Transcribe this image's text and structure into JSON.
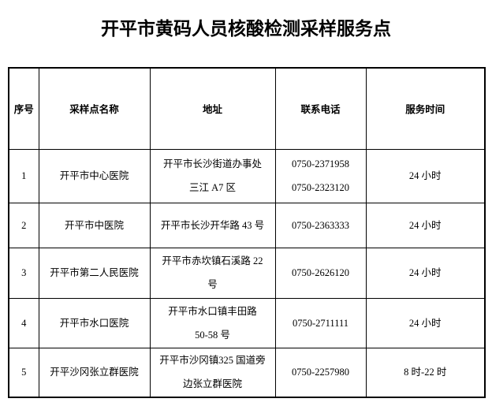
{
  "page": {
    "title": "开平市黄码人员核酸检测采样服务点"
  },
  "table": {
    "headers": [
      "序号",
      "采样点名称",
      "地址",
      "联系电话",
      "服务时间"
    ],
    "rows": [
      {
        "no": "1",
        "name": "开平市中心医院",
        "address_lines": [
          "开平市长沙街道办事处",
          "三江 A7 区"
        ],
        "phone_lines": [
          "0750-2371958",
          "0750-2323120"
        ],
        "hours": "24 小时"
      },
      {
        "no": "2",
        "name": "开平市中医院",
        "address_lines": [
          "开平市长沙开华路 43 号"
        ],
        "phone_lines": [
          "0750-2363333"
        ],
        "hours": "24 小时"
      },
      {
        "no": "3",
        "name": "开平市第二人民医院",
        "address_lines": [
          "开平市赤坎镇石溪路 22",
          "号"
        ],
        "phone_lines": [
          "0750-2626120"
        ],
        "hours": "24 小时"
      },
      {
        "no": "4",
        "name": "开平市水口医院",
        "address_lines": [
          "开平市水口镇丰田路",
          "50-58 号"
        ],
        "phone_lines": [
          "0750-2711111"
        ],
        "hours": "24 小时"
      },
      {
        "no": "5",
        "name": "开平沙冈张立群医院",
        "address_lines": [
          "开平市沙冈镇325 国道旁",
          "边张立群医院"
        ],
        "phone_lines": [
          "0750-2257980"
        ],
        "hours": "8 时-22 时"
      }
    ]
  }
}
